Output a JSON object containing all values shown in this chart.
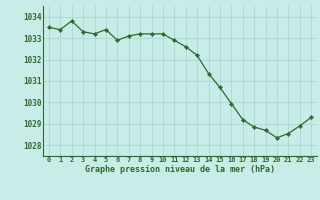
{
  "x": [
    0,
    1,
    2,
    3,
    4,
    5,
    6,
    7,
    8,
    9,
    10,
    11,
    12,
    13,
    14,
    15,
    16,
    17,
    18,
    19,
    20,
    21,
    22,
    23
  ],
  "y": [
    1033.5,
    1033.4,
    1033.8,
    1033.3,
    1033.2,
    1033.4,
    1032.9,
    1033.1,
    1033.2,
    1033.2,
    1033.2,
    1032.9,
    1032.6,
    1032.2,
    1031.35,
    1030.7,
    1029.95,
    1029.2,
    1028.85,
    1028.7,
    1028.35,
    1028.55,
    1028.9,
    1029.3
  ],
  "line_color": "#2d6a2d",
  "marker_color": "#2d6a2d",
  "bg_color": "#c8ede8",
  "grid_color": "#aad8d0",
  "xlabel": "Graphe pression niveau de la mer (hPa)",
  "xlabel_color": "#2d6a2d",
  "tick_color": "#2d6a2d",
  "ylim_min": 1027.5,
  "ylim_max": 1034.5,
  "yticks": [
    1028,
    1029,
    1030,
    1031,
    1032,
    1033,
    1034
  ],
  "xtick_labels": [
    "0",
    "1",
    "2",
    "3",
    "4",
    "5",
    "6",
    "7",
    "8",
    "9",
    "10",
    "11",
    "12",
    "13",
    "14",
    "15",
    "16",
    "17",
    "18",
    "19",
    "20",
    "21",
    "22",
    "23"
  ]
}
